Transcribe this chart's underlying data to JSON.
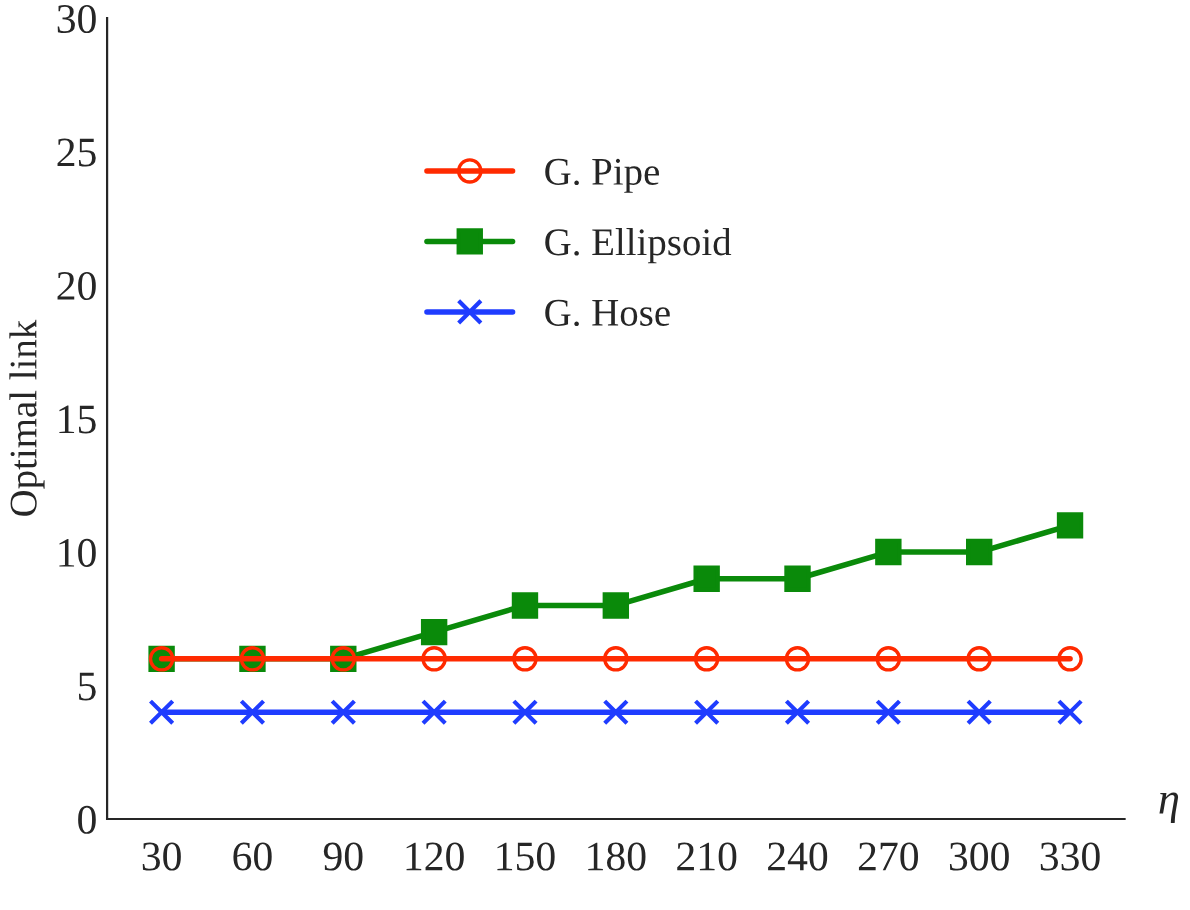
{
  "chart_data": {
    "type": "line",
    "xlabel": "η",
    "ylabel": "Optimal link",
    "categories": [
      "30",
      "60",
      "90",
      "120",
      "150",
      "180",
      "210",
      "240",
      "270",
      "300",
      "330"
    ],
    "series": [
      {
        "name": "G. Pipe",
        "color": "#ff2a00",
        "marker": "circle",
        "values": [
          6,
          6,
          6,
          6,
          6,
          6,
          6,
          6,
          6,
          6,
          6
        ]
      },
      {
        "name": "G. Ellipsoid",
        "color": "#0a8a0a",
        "marker": "square",
        "values": [
          6,
          6,
          6,
          7,
          8,
          8,
          9,
          9,
          10,
          10,
          11
        ]
      },
      {
        "name": "G. Hose",
        "color": "#1f3cff",
        "marker": "cross",
        "values": [
          4,
          4,
          4,
          4,
          4,
          4,
          4,
          4,
          4,
          4,
          4
        ]
      }
    ],
    "ylim": [
      0,
      30
    ],
    "yticks": [
      0,
      5,
      10,
      15,
      20,
      25,
      30
    ],
    "grid": false,
    "legend": "top left",
    "line_style": "solid"
  }
}
